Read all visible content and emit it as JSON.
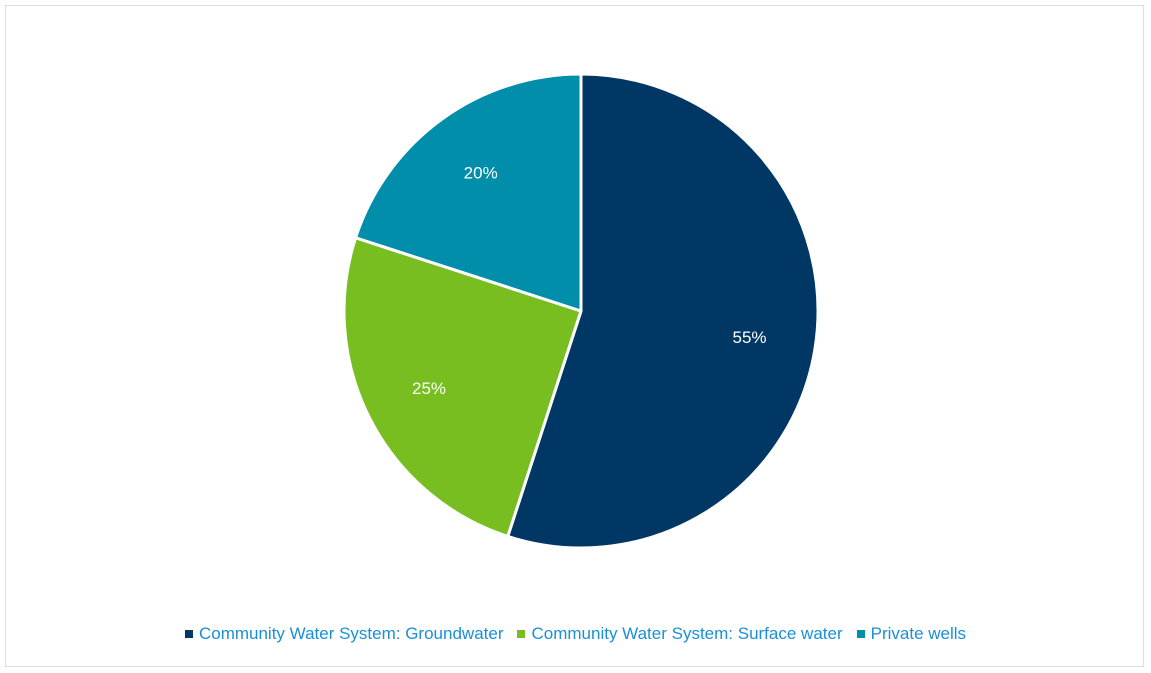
{
  "chart_data": {
    "type": "pie",
    "title": "",
    "legend_position": "bottom",
    "slices": [
      {
        "name": "Community Water System: Groundwater",
        "value": 55,
        "label": "55%",
        "color": "#003764",
        "legend_color": "#003764",
        "text_color": "#1a8fd8"
      },
      {
        "name": "Community Water System: Surface water",
        "value": 25,
        "label": "25%",
        "color": "#78be21",
        "legend_color": "#78be21",
        "text_color": "#1a8fd8"
      },
      {
        "name": "Private wells",
        "value": 20,
        "label": "20%",
        "color": "#008eaa",
        "legend_color": "#008eaa",
        "text_color": "#1a8fd8"
      }
    ]
  }
}
